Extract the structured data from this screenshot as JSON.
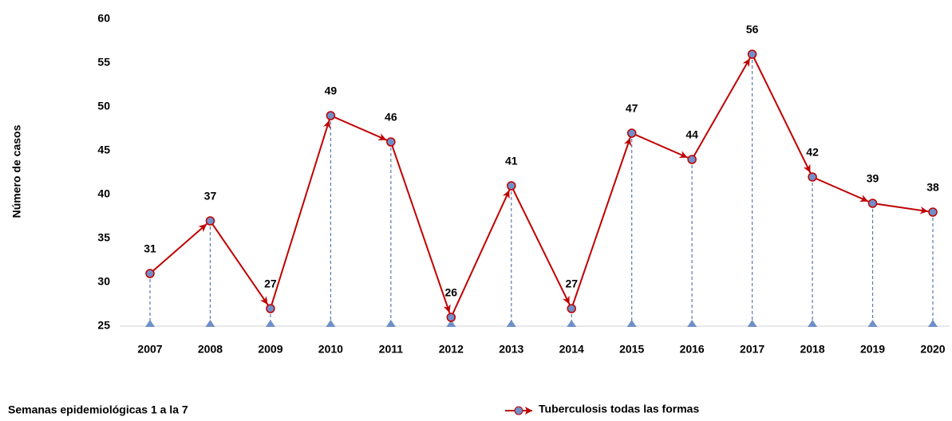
{
  "chart_data": {
    "type": "line",
    "ylabel": "Número de casos",
    "note": "Semanas epidemiológicas 1  a la 7",
    "categories": [
      "2007",
      "2008",
      "2009",
      "2010",
      "2011",
      "2012",
      "2013",
      "2014",
      "2015",
      "2016",
      "2017",
      "2018",
      "2019",
      "2020"
    ],
    "series": [
      {
        "name": "Tuberculosis todas las formas",
        "color": "#c00000",
        "marker_color": "#6f8fc8",
        "values": [
          31,
          37,
          27,
          49,
          46,
          26,
          41,
          27,
          47,
          44,
          56,
          42,
          39,
          38
        ]
      }
    ],
    "ylim": [
      25,
      60
    ],
    "yticks": [
      25,
      30,
      35,
      40,
      45,
      50,
      55,
      60
    ]
  }
}
